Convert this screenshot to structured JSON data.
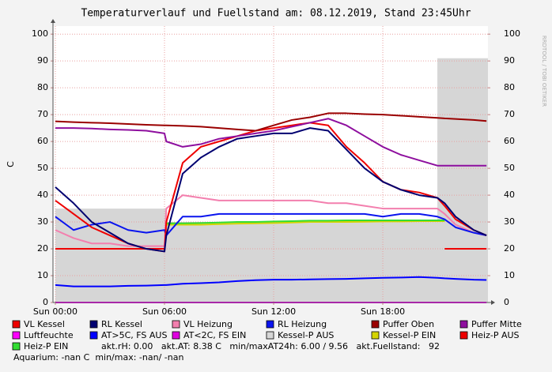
{
  "chart_data": {
    "type": "line",
    "title": "Temperaturverlauf und Fuellstand am: 08.12.2019, Stand 23:45Uhr",
    "y_label": "C",
    "watermark": "RRDTOOL / TOBI OETIKER",
    "x": [
      0,
      1,
      2,
      3,
      4,
      5,
      6,
      6.1,
      7,
      8,
      9,
      10,
      11,
      12,
      13,
      14,
      15,
      16,
      17,
      18,
      19,
      20,
      21,
      21.4,
      22,
      23,
      23.7
    ],
    "xlim": [
      -0.13,
      23.78
    ],
    "xticks": [
      {
        "value": 0,
        "label": "Sun 00:00"
      },
      {
        "value": 6,
        "label": "Sun 06:00"
      },
      {
        "value": 12,
        "label": "Sun 12:00"
      },
      {
        "value": 18,
        "label": "Sun 18:00"
      }
    ],
    "ylim": [
      0,
      103
    ],
    "yticks": [
      0,
      10,
      20,
      30,
      40,
      50,
      60,
      70,
      80,
      90,
      100
    ],
    "y2lim": [
      0,
      103
    ],
    "y2ticks": [
      0,
      10,
      20,
      30,
      40,
      50,
      60,
      70,
      80,
      90,
      100
    ],
    "grid": true,
    "series": [
      {
        "name": "Kessel-P AUS",
        "color": "#d6d6d6",
        "style": "step-area",
        "values": [
          35,
          35,
          35,
          35,
          35,
          35,
          35,
          30,
          30,
          30,
          30,
          30,
          30,
          30,
          30,
          30,
          30,
          30,
          30,
          30,
          30,
          30,
          91,
          91,
          91,
          91,
          91
        ]
      },
      {
        "name": "Luftfeuchte",
        "color": "#ff00ff",
        "values": [
          0,
          0,
          0,
          0,
          0,
          0,
          0,
          0,
          0,
          0,
          0,
          0,
          0,
          0,
          0,
          0,
          0,
          0,
          0,
          0,
          0,
          0,
          0,
          0,
          0,
          0,
          0
        ]
      },
      {
        "name": "AT>5C, FS AUS",
        "color": "#0000ff",
        "values": [
          6.5,
          6,
          6,
          6,
          6.2,
          6.3,
          6.5,
          6.5,
          7,
          7.2,
          7.5,
          8,
          8.3,
          8.5,
          8.5,
          8.6,
          8.7,
          8.8,
          9,
          9.2,
          9.3,
          9.5,
          9.2,
          9,
          8.8,
          8.5,
          8.4
        ]
      },
      {
        "name": "AT<2C, FS EIN",
        "color": "#e000e0",
        "values": [
          null,
          null,
          null,
          null,
          null,
          null,
          null,
          null,
          null,
          null,
          null,
          null,
          null,
          null,
          null,
          null,
          null,
          null,
          null,
          null,
          null,
          null,
          null,
          null,
          null,
          null,
          null
        ]
      },
      {
        "name": "Kessel-P EIN",
        "color": "#d4d400",
        "values": [
          null,
          null,
          null,
          null,
          null,
          null,
          null,
          29,
          29,
          29,
          29.2,
          29.4,
          29.5,
          29.6,
          29.8,
          30,
          30,
          30,
          30.1,
          30.2,
          30.2,
          30.3,
          30.3,
          30.3,
          null,
          null,
          null
        ]
      },
      {
        "name": "Heiz-P EIN",
        "color": "#33dd33",
        "values": [
          null,
          null,
          null,
          null,
          null,
          null,
          null,
          29.5,
          29.5,
          29.6,
          29.8,
          30,
          30,
          30.2,
          30.3,
          30.5,
          30.5,
          30.6,
          30.6,
          30.6,
          30.6,
          30.6,
          30.6,
          30.6,
          null,
          null,
          null
        ]
      },
      {
        "name": "Heiz-P AUS",
        "color": "#ee0000",
        "values": [
          20,
          20,
          20,
          20,
          20,
          20,
          20,
          null,
          null,
          null,
          null,
          null,
          null,
          null,
          null,
          null,
          null,
          null,
          null,
          null,
          null,
          null,
          null,
          20,
          20,
          20,
          20
        ]
      },
      {
        "name": "VL Heizung",
        "color": "#f37fae",
        "values": [
          27,
          24,
          22,
          22,
          21,
          21,
          21,
          35,
          40,
          39,
          38,
          38,
          38,
          38,
          38,
          38,
          37,
          37,
          36,
          35,
          35,
          35,
          35,
          33,
          29,
          26,
          25
        ]
      },
      {
        "name": "RL Heizung",
        "color": "#0a14ee",
        "values": [
          32,
          27,
          29,
          30,
          27,
          26,
          27,
          25,
          32,
          32,
          33,
          33,
          33,
          33,
          33,
          33,
          33,
          33,
          33,
          32,
          33,
          33,
          32,
          31,
          28,
          26,
          25
        ]
      },
      {
        "name": "VL Kessel",
        "color": "#ee0000",
        "values": [
          38,
          33,
          28,
          25,
          22,
          20,
          19,
          30,
          52,
          58,
          60,
          62,
          64,
          65,
          66,
          67,
          66,
          58,
          52,
          45,
          42,
          41,
          39,
          36,
          31,
          27,
          25
        ]
      },
      {
        "name": "RL Kessel",
        "color": "#000070",
        "values": [
          43,
          37,
          30,
          26,
          22,
          20,
          19,
          25,
          48,
          54,
          58,
          61,
          62,
          63,
          63,
          65,
          64,
          57,
          50,
          45,
          42,
          40,
          39,
          37,
          32,
          27,
          25
        ]
      },
      {
        "name": "Puffer Mitte",
        "color": "#8e0f9e",
        "values": [
          65,
          65,
          64.8,
          64.5,
          64.3,
          64,
          63,
          60,
          58,
          59,
          61,
          62,
          63,
          64,
          65.5,
          67,
          68.5,
          66,
          62,
          58,
          55,
          53,
          51,
          51,
          51,
          51,
          51
        ]
      },
      {
        "name": "Puffer Oben",
        "color": "#9a0000",
        "values": [
          67.5,
          67.2,
          67,
          66.8,
          66.5,
          66.2,
          66,
          66,
          65.8,
          65.5,
          65,
          64.5,
          64,
          66,
          68,
          69,
          70.5,
          70.5,
          70.2,
          70,
          69.6,
          69.2,
          68.8,
          68.6,
          68.4,
          68,
          67.6
        ]
      }
    ],
    "legend_order": [
      9,
      10,
      7,
      8,
      12,
      11,
      1,
      2,
      3,
      0,
      4,
      6,
      5
    ],
    "info_lines": [
      "akt.rH: 0.00   akt.AT: 8.38 C   min/maxAT24h: 6.00 / 9.56   akt.Fuellstand:   92",
      "Aquarium: -nan C  min/max: -nan/ -nan"
    ]
  }
}
